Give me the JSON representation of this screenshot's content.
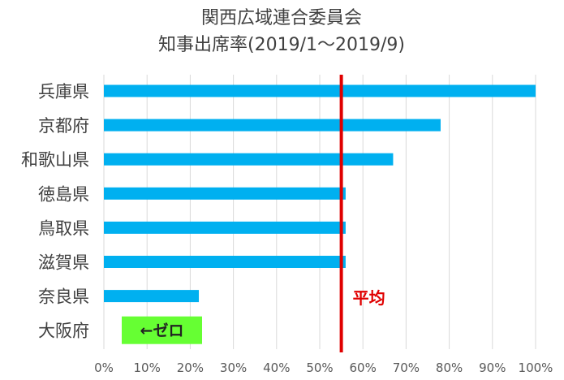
{
  "chart_data": {
    "type": "bar",
    "orientation": "horizontal",
    "title": "関西広域連合委員会",
    "subtitle": "知事出席率(2019/1〜2019/9)",
    "categories": [
      "兵庫県",
      "京都府",
      "和歌山県",
      "徳島県",
      "鳥取県",
      "滋賀県",
      "奈良県",
      "大阪府"
    ],
    "values": [
      100,
      78,
      67,
      56,
      56,
      56,
      22,
      0
    ],
    "unit": "%",
    "xlim": [
      0,
      100
    ],
    "x_ticks": [
      "0%",
      "10%",
      "20%",
      "30%",
      "40%",
      "50%",
      "60%",
      "70%",
      "80%",
      "90%",
      "100%"
    ],
    "grid": true,
    "legend": "none",
    "bar_color": "#00b0f0",
    "average": {
      "value": 55,
      "label": "平均",
      "color": "#e00000"
    },
    "annotation": {
      "text": "←ゼロ",
      "category": "大阪府",
      "background": "#66ff33"
    }
  }
}
